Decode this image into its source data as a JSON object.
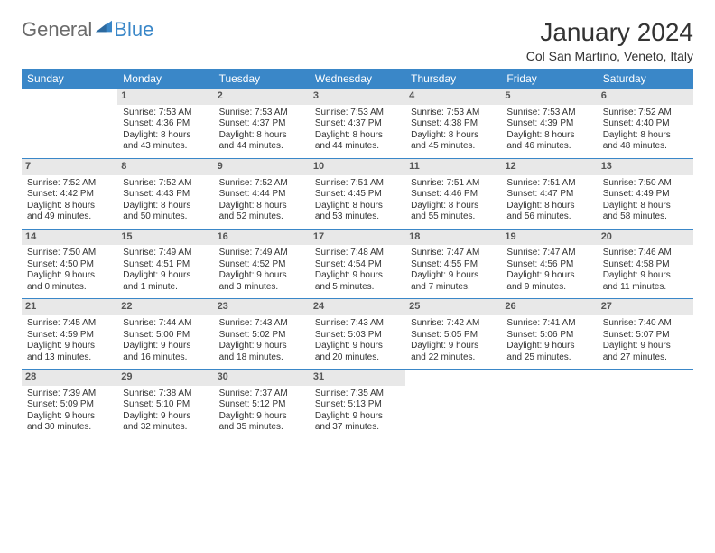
{
  "logo": {
    "word1": "General",
    "word2": "Blue"
  },
  "title": "January 2024",
  "location": "Col San Martino, Veneto, Italy",
  "colors": {
    "header_bg": "#3a87c8",
    "header_text": "#ffffff",
    "daynum_bg": "#e8e8e8",
    "border": "#3a87c8",
    "text": "#333333",
    "logo_gray": "#6b6b6b",
    "logo_blue": "#3a87c8"
  },
  "week_headers": [
    "Sunday",
    "Monday",
    "Tuesday",
    "Wednesday",
    "Thursday",
    "Friday",
    "Saturday"
  ],
  "weeks": [
    [
      null,
      {
        "n": "1",
        "sr": "Sunrise: 7:53 AM",
        "ss": "Sunset: 4:36 PM",
        "d1": "Daylight: 8 hours",
        "d2": "and 43 minutes."
      },
      {
        "n": "2",
        "sr": "Sunrise: 7:53 AM",
        "ss": "Sunset: 4:37 PM",
        "d1": "Daylight: 8 hours",
        "d2": "and 44 minutes."
      },
      {
        "n": "3",
        "sr": "Sunrise: 7:53 AM",
        "ss": "Sunset: 4:37 PM",
        "d1": "Daylight: 8 hours",
        "d2": "and 44 minutes."
      },
      {
        "n": "4",
        "sr": "Sunrise: 7:53 AM",
        "ss": "Sunset: 4:38 PM",
        "d1": "Daylight: 8 hours",
        "d2": "and 45 minutes."
      },
      {
        "n": "5",
        "sr": "Sunrise: 7:53 AM",
        "ss": "Sunset: 4:39 PM",
        "d1": "Daylight: 8 hours",
        "d2": "and 46 minutes."
      },
      {
        "n": "6",
        "sr": "Sunrise: 7:52 AM",
        "ss": "Sunset: 4:40 PM",
        "d1": "Daylight: 8 hours",
        "d2": "and 48 minutes."
      }
    ],
    [
      {
        "n": "7",
        "sr": "Sunrise: 7:52 AM",
        "ss": "Sunset: 4:42 PM",
        "d1": "Daylight: 8 hours",
        "d2": "and 49 minutes."
      },
      {
        "n": "8",
        "sr": "Sunrise: 7:52 AM",
        "ss": "Sunset: 4:43 PM",
        "d1": "Daylight: 8 hours",
        "d2": "and 50 minutes."
      },
      {
        "n": "9",
        "sr": "Sunrise: 7:52 AM",
        "ss": "Sunset: 4:44 PM",
        "d1": "Daylight: 8 hours",
        "d2": "and 52 minutes."
      },
      {
        "n": "10",
        "sr": "Sunrise: 7:51 AM",
        "ss": "Sunset: 4:45 PM",
        "d1": "Daylight: 8 hours",
        "d2": "and 53 minutes."
      },
      {
        "n": "11",
        "sr": "Sunrise: 7:51 AM",
        "ss": "Sunset: 4:46 PM",
        "d1": "Daylight: 8 hours",
        "d2": "and 55 minutes."
      },
      {
        "n": "12",
        "sr": "Sunrise: 7:51 AM",
        "ss": "Sunset: 4:47 PM",
        "d1": "Daylight: 8 hours",
        "d2": "and 56 minutes."
      },
      {
        "n": "13",
        "sr": "Sunrise: 7:50 AM",
        "ss": "Sunset: 4:49 PM",
        "d1": "Daylight: 8 hours",
        "d2": "and 58 minutes."
      }
    ],
    [
      {
        "n": "14",
        "sr": "Sunrise: 7:50 AM",
        "ss": "Sunset: 4:50 PM",
        "d1": "Daylight: 9 hours",
        "d2": "and 0 minutes."
      },
      {
        "n": "15",
        "sr": "Sunrise: 7:49 AM",
        "ss": "Sunset: 4:51 PM",
        "d1": "Daylight: 9 hours",
        "d2": "and 1 minute."
      },
      {
        "n": "16",
        "sr": "Sunrise: 7:49 AM",
        "ss": "Sunset: 4:52 PM",
        "d1": "Daylight: 9 hours",
        "d2": "and 3 minutes."
      },
      {
        "n": "17",
        "sr": "Sunrise: 7:48 AM",
        "ss": "Sunset: 4:54 PM",
        "d1": "Daylight: 9 hours",
        "d2": "and 5 minutes."
      },
      {
        "n": "18",
        "sr": "Sunrise: 7:47 AM",
        "ss": "Sunset: 4:55 PM",
        "d1": "Daylight: 9 hours",
        "d2": "and 7 minutes."
      },
      {
        "n": "19",
        "sr": "Sunrise: 7:47 AM",
        "ss": "Sunset: 4:56 PM",
        "d1": "Daylight: 9 hours",
        "d2": "and 9 minutes."
      },
      {
        "n": "20",
        "sr": "Sunrise: 7:46 AM",
        "ss": "Sunset: 4:58 PM",
        "d1": "Daylight: 9 hours",
        "d2": "and 11 minutes."
      }
    ],
    [
      {
        "n": "21",
        "sr": "Sunrise: 7:45 AM",
        "ss": "Sunset: 4:59 PM",
        "d1": "Daylight: 9 hours",
        "d2": "and 13 minutes."
      },
      {
        "n": "22",
        "sr": "Sunrise: 7:44 AM",
        "ss": "Sunset: 5:00 PM",
        "d1": "Daylight: 9 hours",
        "d2": "and 16 minutes."
      },
      {
        "n": "23",
        "sr": "Sunrise: 7:43 AM",
        "ss": "Sunset: 5:02 PM",
        "d1": "Daylight: 9 hours",
        "d2": "and 18 minutes."
      },
      {
        "n": "24",
        "sr": "Sunrise: 7:43 AM",
        "ss": "Sunset: 5:03 PM",
        "d1": "Daylight: 9 hours",
        "d2": "and 20 minutes."
      },
      {
        "n": "25",
        "sr": "Sunrise: 7:42 AM",
        "ss": "Sunset: 5:05 PM",
        "d1": "Daylight: 9 hours",
        "d2": "and 22 minutes."
      },
      {
        "n": "26",
        "sr": "Sunrise: 7:41 AM",
        "ss": "Sunset: 5:06 PM",
        "d1": "Daylight: 9 hours",
        "d2": "and 25 minutes."
      },
      {
        "n": "27",
        "sr": "Sunrise: 7:40 AM",
        "ss": "Sunset: 5:07 PM",
        "d1": "Daylight: 9 hours",
        "d2": "and 27 minutes."
      }
    ],
    [
      {
        "n": "28",
        "sr": "Sunrise: 7:39 AM",
        "ss": "Sunset: 5:09 PM",
        "d1": "Daylight: 9 hours",
        "d2": "and 30 minutes."
      },
      {
        "n": "29",
        "sr": "Sunrise: 7:38 AM",
        "ss": "Sunset: 5:10 PM",
        "d1": "Daylight: 9 hours",
        "d2": "and 32 minutes."
      },
      {
        "n": "30",
        "sr": "Sunrise: 7:37 AM",
        "ss": "Sunset: 5:12 PM",
        "d1": "Daylight: 9 hours",
        "d2": "and 35 minutes."
      },
      {
        "n": "31",
        "sr": "Sunrise: 7:35 AM",
        "ss": "Sunset: 5:13 PM",
        "d1": "Daylight: 9 hours",
        "d2": "and 37 minutes."
      },
      null,
      null,
      null
    ]
  ]
}
